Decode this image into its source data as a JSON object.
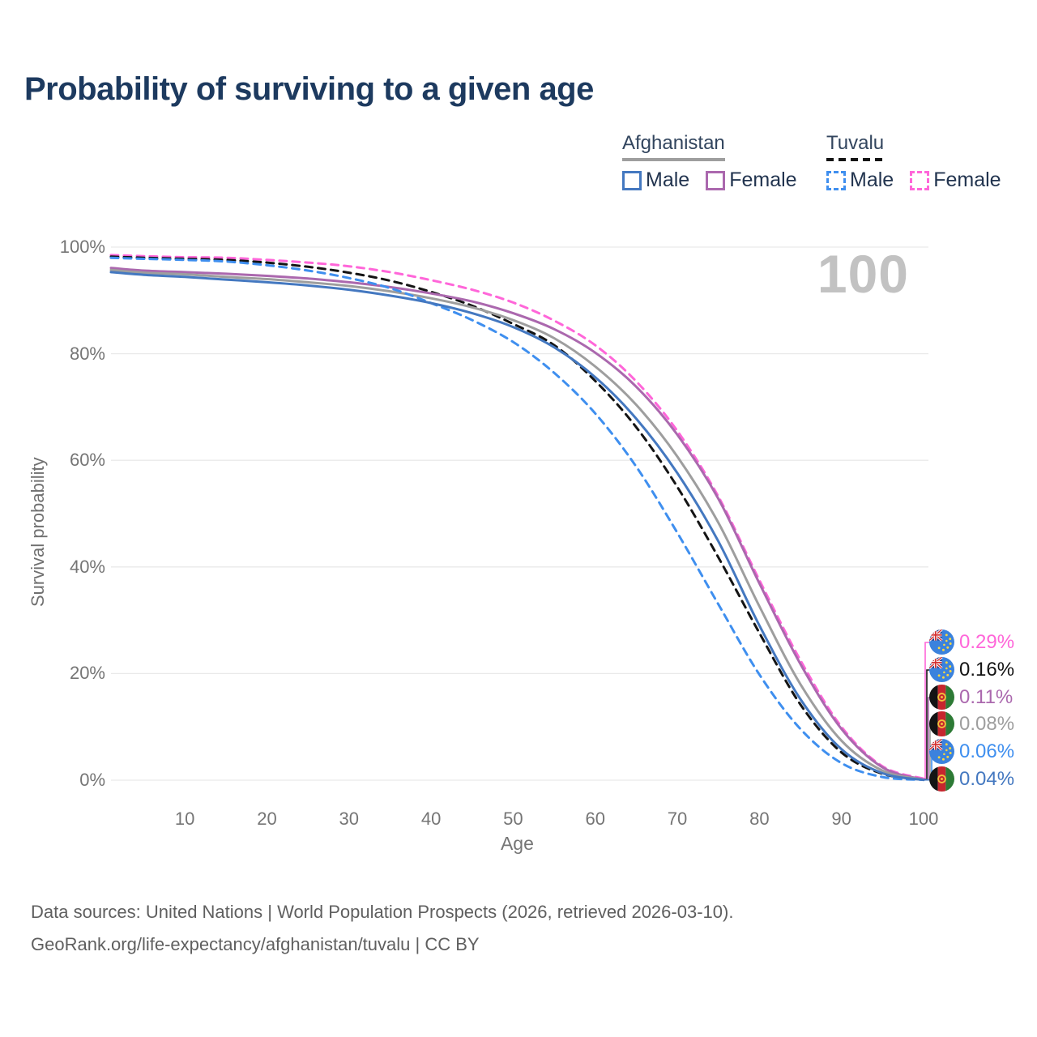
{
  "title": "Probability of surviving to a given age",
  "watermark": "100",
  "legend": {
    "groups": [
      {
        "name": "Afghanistan",
        "line_style": "solid",
        "underline_color": "#9e9e9e",
        "items": [
          {
            "label": "Male",
            "color": "#4478c0"
          },
          {
            "label": "Female",
            "color": "#ab68ae"
          }
        ]
      },
      {
        "name": "Tuvalu",
        "line_style": "dashed",
        "underline_color": "#141414",
        "items": [
          {
            "label": "Male",
            "color": "#3f8fef"
          },
          {
            "label": "Female",
            "color": "#ff66d9"
          }
        ]
      }
    ]
  },
  "axes": {
    "y_label": "Survival probability",
    "x_label": "Age",
    "y_ticks": [
      "100%",
      "80%",
      "60%",
      "40%",
      "20%",
      "0%"
    ],
    "y_tick_values": [
      100,
      80,
      60,
      40,
      20,
      0
    ],
    "x_ticks": [
      "10",
      "20",
      "30",
      "40",
      "50",
      "60",
      "70",
      "80",
      "90",
      "100"
    ],
    "x_tick_values": [
      10,
      20,
      30,
      40,
      50,
      60,
      70,
      80,
      90,
      100
    ]
  },
  "chart_data": {
    "type": "line",
    "title": "Probability of surviving to a given age",
    "xlabel": "Age",
    "ylabel": "Survival probability",
    "xlim": [
      1,
      100
    ],
    "ylim": [
      0,
      100
    ],
    "grid": "horizontal",
    "x": [
      1,
      5,
      10,
      15,
      20,
      25,
      30,
      35,
      40,
      45,
      50,
      55,
      60,
      65,
      70,
      75,
      80,
      85,
      90,
      95,
      100
    ],
    "series": [
      {
        "name": "Tuvalu Female",
        "country": "Tuvalu",
        "sex": "Female",
        "color": "#ff66d9",
        "dashed": true,
        "end_label": "0.29%",
        "values": [
          98.5,
          98.3,
          98.1,
          98.0,
          97.6,
          97.1,
          96.4,
          95.3,
          93.8,
          92.0,
          89.6,
          86.2,
          81.6,
          74.8,
          65.5,
          53.2,
          37.5,
          22.5,
          10.0,
          2.6,
          0.29
        ]
      },
      {
        "name": "Tuvalu",
        "country": "Tuvalu",
        "sex": "Both",
        "color": "#141414",
        "dashed": true,
        "end_label": "0.16%",
        "values": [
          98.2,
          98.0,
          97.8,
          97.6,
          97.1,
          96.3,
          95.2,
          93.7,
          91.6,
          89.0,
          85.6,
          81.6,
          74.9,
          66.2,
          55.0,
          41.8,
          27.6,
          14.2,
          5.2,
          1.2,
          0.16
        ]
      },
      {
        "name": "Afghanistan Female",
        "country": "Afghanistan",
        "sex": "Female",
        "color": "#ab68ae",
        "dashed": false,
        "end_label": "0.11%",
        "values": [
          96.1,
          95.6,
          95.3,
          95.0,
          94.6,
          94.1,
          93.4,
          92.5,
          91.3,
          89.8,
          87.6,
          84.6,
          80.2,
          73.8,
          64.8,
          52.8,
          36.9,
          21.8,
          9.6,
          2.4,
          0.11
        ]
      },
      {
        "name": "Afghanistan",
        "country": "Afghanistan",
        "sex": "Both",
        "color": "#9e9e9e",
        "dashed": false,
        "end_label": "0.08%",
        "values": [
          95.7,
          95.2,
          94.9,
          94.4,
          94.0,
          93.4,
          92.7,
          91.7,
          90.4,
          88.7,
          86.3,
          82.9,
          77.6,
          70.4,
          60.7,
          48.3,
          32.6,
          18.0,
          7.4,
          1.8,
          0.08
        ]
      },
      {
        "name": "Tuvalu Male",
        "country": "Tuvalu",
        "sex": "Male",
        "color": "#3f8fef",
        "dashed": true,
        "end_label": "0.06%",
        "values": [
          98.0,
          97.8,
          97.6,
          97.3,
          96.6,
          95.6,
          94.2,
          92.3,
          89.5,
          86.3,
          82.2,
          76.4,
          68.8,
          58.8,
          46.4,
          33.0,
          19.8,
          9.6,
          3.2,
          0.6,
          0.06
        ]
      },
      {
        "name": "Afghanistan Male",
        "country": "Afghanistan",
        "sex": "Male",
        "color": "#4478c0",
        "dashed": false,
        "end_label": "0.04%",
        "values": [
          95.3,
          94.8,
          94.4,
          93.9,
          93.4,
          92.8,
          92.0,
          90.9,
          89.5,
          87.6,
          85.0,
          81.2,
          75.6,
          67.8,
          57.6,
          44.8,
          29.0,
          15.2,
          5.8,
          1.3,
          0.04
        ]
      }
    ]
  },
  "footer": {
    "line1": "Data sources: United Nations | World Population Prospects (2026, retrieved 2026-03-10).",
    "line2": "GeoRank.org/life-expectancy/afghanistan/tuvalu | CC BY"
  }
}
